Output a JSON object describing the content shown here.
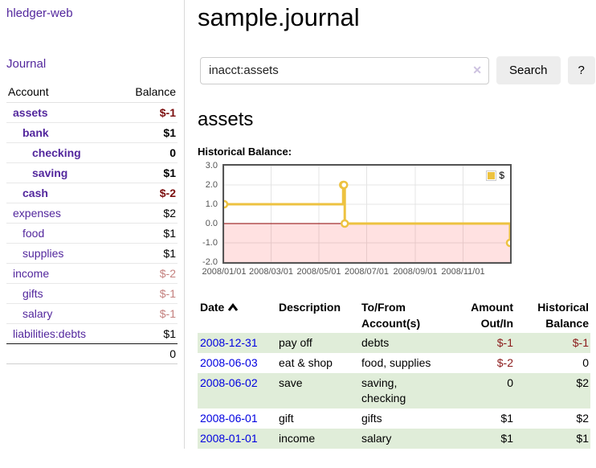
{
  "app_title": "hledger-web",
  "sidebar": {
    "journal_link": "Journal",
    "accounts": {
      "header_account": "Account",
      "header_balance": "Balance",
      "rows": [
        {
          "account": "assets",
          "balance": "$-1",
          "indent": 1,
          "emphasis": "bold",
          "balance_style": "negative-strong"
        },
        {
          "account": "bank",
          "balance": "$1",
          "indent": 2,
          "emphasis": "bold",
          "balance_style": "normal"
        },
        {
          "account": "checking",
          "balance": "0",
          "indent": 3,
          "emphasis": "bold",
          "balance_style": "normal"
        },
        {
          "account": "saving",
          "balance": "$1",
          "indent": 3,
          "emphasis": "bold",
          "balance_style": "normal"
        },
        {
          "account": "cash",
          "balance": "$-2",
          "indent": 2,
          "emphasis": "bold",
          "balance_style": "negative-strong"
        },
        {
          "account": "expenses",
          "balance": "$2",
          "indent": 1,
          "emphasis": "normal",
          "balance_style": "normal"
        },
        {
          "account": "food",
          "balance": "$1",
          "indent": 2,
          "emphasis": "normal",
          "balance_style": "normal"
        },
        {
          "account": "supplies",
          "balance": "$1",
          "indent": 2,
          "emphasis": "normal",
          "balance_style": "normal"
        },
        {
          "account": "income",
          "balance": "$-2",
          "indent": 1,
          "emphasis": "normal",
          "balance_style": "negative-faded"
        },
        {
          "account": "gifts",
          "balance": "$-1",
          "indent": 2,
          "emphasis": "normal",
          "balance_style": "negative-faded"
        },
        {
          "account": "salary",
          "balance": "$-1",
          "indent": 2,
          "emphasis": "normal",
          "balance_style": "negative-faded"
        },
        {
          "account": "liabilities:debts",
          "balance": "$1",
          "indent": 1,
          "emphasis": "normal",
          "balance_style": "normal"
        }
      ],
      "total": "0"
    }
  },
  "main": {
    "title": "sample.journal",
    "search": {
      "value": "inacct:assets",
      "clear_icon": "✕",
      "search_button": "Search",
      "help_button": "?"
    },
    "account_heading": "assets",
    "chart_title": "Historical Balance:"
  },
  "register": {
    "headers": {
      "date": "Date",
      "description": "Description",
      "accounts": "To/From Account(s)",
      "amount": "Amount Out/In",
      "balance": "Historical Balance"
    },
    "rows": [
      {
        "date": "2008-12-31",
        "description": "pay off",
        "accounts": "debts",
        "amount": "$-1",
        "balance": "$-1",
        "amount_style": "negative",
        "balance_style": "negative",
        "shaded": true
      },
      {
        "date": "2008-06-03",
        "description": "eat & shop",
        "accounts": "food, supplies",
        "amount": "$-2",
        "balance": "0",
        "amount_style": "negative",
        "balance_style": "normal",
        "shaded": false
      },
      {
        "date": "2008-06-02",
        "description": "save",
        "accounts": "saving, checking",
        "amount": "0",
        "balance": "$2",
        "amount_style": "normal",
        "balance_style": "normal",
        "shaded": true
      },
      {
        "date": "2008-06-01",
        "description": "gift",
        "accounts": "gifts",
        "amount": "$1",
        "balance": "$2",
        "amount_style": "normal",
        "balance_style": "normal",
        "shaded": false
      },
      {
        "date": "2008-01-01",
        "description": "income",
        "accounts": "salary",
        "amount": "$1",
        "balance": "$1",
        "amount_style": "normal",
        "balance_style": "normal",
        "shaded": true
      }
    ]
  },
  "chart_data": {
    "type": "line",
    "title": "Historical Balance:",
    "step": true,
    "xlim": [
      "2008-01-01",
      "2008-12-31"
    ],
    "ylim": [
      -2,
      3
    ],
    "x_ticks": [
      {
        "date": "2008-01-01",
        "label": "2008/01/01"
      },
      {
        "date": "2008-03-01",
        "label": "2008/03/01"
      },
      {
        "date": "2008-05-01",
        "label": "2008/05/01"
      },
      {
        "date": "2008-07-01",
        "label": "2008/07/01"
      },
      {
        "date": "2008-09-01",
        "label": "2008/09/01"
      },
      {
        "date": "2008-11-01",
        "label": "2008/11/01"
      }
    ],
    "y_ticks": [
      {
        "value": 3,
        "label": "3.0"
      },
      {
        "value": 2,
        "label": "2.0"
      },
      {
        "value": 1,
        "label": "1.0"
      },
      {
        "value": 0,
        "label": "0.0"
      },
      {
        "value": -1,
        "label": "-1.0"
      },
      {
        "value": -2,
        "label": "-2.0"
      }
    ],
    "series": [
      {
        "name": "$",
        "points": [
          {
            "date": "2008-01-01",
            "value": 1
          },
          {
            "date": "2008-06-01",
            "value": 2
          },
          {
            "date": "2008-06-02",
            "value": 2
          },
          {
            "date": "2008-06-03",
            "value": 0
          },
          {
            "date": "2008-12-31",
            "value": -1
          }
        ]
      }
    ],
    "legend_position": "top-right",
    "grid": true,
    "colors": {
      "series": "#edc240",
      "marker_fill": "#ffffff",
      "grid": "#e4e4e4",
      "border": "#545454",
      "negative_zone": "rgba(255,45,45,0.14)",
      "zero_line": "#8b0000",
      "tick_text": "#545454"
    }
  }
}
